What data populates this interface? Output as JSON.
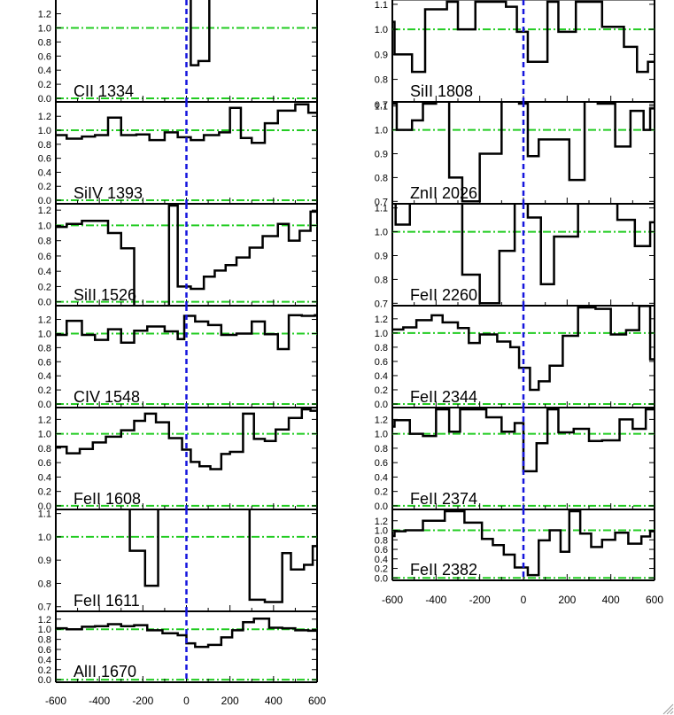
{
  "chart_data": {
    "type": "line",
    "xlabel": "",
    "ylabel": "",
    "xlim": [
      -600,
      600
    ],
    "x_ticks": [
      -600,
      -400,
      -200,
      0,
      200,
      400,
      600
    ],
    "x_tick_labels": [
      "-600",
      "-400",
      "-200",
      "0",
      "200",
      "400",
      "600"
    ],
    "marker_x": 0,
    "continuum_level": 1.0,
    "zero_level": 0.0,
    "colors": {
      "spectrum": "#000000",
      "continuum": "#22cc22",
      "velocity_zero": "#1515dd",
      "axes": "#000000"
    },
    "panels": [
      {
        "label": "CII 1334",
        "column": "left",
        "row": 0,
        "ylim": [
          -0.05,
          1.37
        ],
        "yticks": [
          0.0,
          0.2,
          0.4,
          0.6,
          0.8,
          1.0,
          1.2
        ],
        "ytick_labels": [
          "0.0",
          "0.2",
          "0.4",
          "0.6",
          "0.8",
          "1.0",
          "1.2"
        ],
        "x": [
          -20,
          20,
          55,
          105
        ],
        "y": [
          1.6,
          0.47,
          0.53,
          1.6
        ]
      },
      {
        "label": "SiIV 1393",
        "column": "left",
        "row": 1,
        "ylim": [
          -0.05,
          1.38
        ],
        "yticks": [
          0.0,
          0.2,
          0.4,
          0.6,
          0.8,
          1.0,
          1.2
        ],
        "ytick_labels": [
          "0.0",
          "0.2",
          "0.4",
          "0.6",
          "0.8",
          "1.0",
          "1.2"
        ],
        "x": [
          -600,
          -550,
          -480,
          -420,
          -360,
          -300,
          -230,
          -170,
          -100,
          -40,
          20,
          80,
          150,
          200,
          250,
          300,
          360,
          420,
          500,
          560
        ],
        "y": [
          0.93,
          0.88,
          0.91,
          0.93,
          1.18,
          0.93,
          0.94,
          0.86,
          0.97,
          0.9,
          0.86,
          0.93,
          0.97,
          1.32,
          0.89,
          0.82,
          1.1,
          1.28,
          1.37,
          1.25
        ]
      },
      {
        "label": "SiII 1526",
        "column": "left",
        "row": 2,
        "ylim": [
          -0.05,
          1.26
        ],
        "yticks": [
          0.0,
          0.2,
          0.4,
          0.6,
          0.8,
          1.0,
          1.2
        ],
        "ytick_labels": [
          "0.0",
          "0.2",
          "0.4",
          "0.6",
          "0.8",
          "1.0",
          "1.2"
        ],
        "x": [
          -600,
          -550,
          -480,
          -420,
          -360,
          -300,
          -240,
          -180,
          -130,
          -80,
          -40,
          20,
          80,
          130,
          180,
          230,
          290,
          350,
          420,
          470,
          520,
          570
        ],
        "y": [
          0.98,
          1.02,
          1.06,
          1.06,
          0.9,
          0.7,
          -0.1,
          -0.1,
          -0.1,
          1.26,
          0.2,
          0.17,
          0.33,
          0.41,
          0.48,
          0.58,
          0.71,
          0.86,
          1.02,
          0.8,
          0.93,
          1.18
        ]
      },
      {
        "label": "CIV 1548",
        "column": "left",
        "row": 3,
        "ylim": [
          -0.05,
          1.37
        ],
        "yticks": [
          0.0,
          0.2,
          0.4,
          0.6,
          0.8,
          1.0,
          1.2
        ],
        "ytick_labels": [
          "0.0",
          "0.2",
          "0.4",
          "0.6",
          "0.8",
          "1.0",
          "1.2"
        ],
        "x": [
          -600,
          -550,
          -480,
          -420,
          -360,
          -300,
          -240,
          -180,
          -100,
          -40,
          -10,
          40,
          100,
          160,
          230,
          300,
          360,
          420,
          470,
          530,
          590
        ],
        "y": [
          0.98,
          1.18,
          0.98,
          0.91,
          1.06,
          0.87,
          1.04,
          1.1,
          1.03,
          0.92,
          1.25,
          1.17,
          1.12,
          0.98,
          1.0,
          1.17,
          0.99,
          0.78,
          1.26,
          1.25,
          1.26
        ]
      },
      {
        "label": "FeII 1608",
        "column": "left",
        "row": 4,
        "ylim": [
          -0.05,
          1.34
        ],
        "yticks": [
          0.0,
          0.2,
          0.4,
          0.6,
          0.8,
          1.0,
          1.2
        ],
        "ytick_labels": [
          "0.0",
          "0.2",
          "0.4",
          "0.6",
          "0.8",
          "1.0",
          "1.2"
        ],
        "x": [
          -600,
          -550,
          -490,
          -430,
          -370,
          -300,
          -240,
          -190,
          -140,
          -80,
          -20,
          20,
          60,
          110,
          160,
          200,
          260,
          310,
          360,
          410,
          470,
          530,
          570
        ],
        "y": [
          0.82,
          0.73,
          0.79,
          0.88,
          0.96,
          1.05,
          1.18,
          1.28,
          1.16,
          0.94,
          0.78,
          0.61,
          0.55,
          0.51,
          0.72,
          0.75,
          1.28,
          0.93,
          0.9,
          1.06,
          1.22,
          1.34,
          1.32
        ]
      },
      {
        "label": "FeII 1611",
        "column": "left",
        "row": 5,
        "ylim": [
          0.68,
          1.11
        ],
        "yticks": [
          0.7,
          0.8,
          0.9,
          1.0,
          1.1
        ],
        "ytick_labels": [
          "0.7",
          "0.8",
          "0.9",
          "1.0",
          "1.1"
        ],
        "x": [
          -600,
          -330,
          -260,
          -190,
          -130,
          290,
          360,
          440,
          480,
          540,
          580
        ],
        "y": [
          1.15,
          1.15,
          0.94,
          0.79,
          1.15,
          0.73,
          0.72,
          0.93,
          0.86,
          0.88,
          0.96
        ]
      },
      {
        "label": "AlII 1670",
        "column": "left",
        "row": 6,
        "ylim": [
          -0.05,
          1.32
        ],
        "yticks": [
          0.0,
          0.2,
          0.4,
          0.6,
          0.8,
          1.0,
          1.2
        ],
        "ytick_labels": [
          "0.0",
          "0.2",
          "0.4",
          "0.6",
          "0.8",
          "1.0",
          "1.2"
        ],
        "x": [
          -600,
          -550,
          -480,
          -420,
          -360,
          -300,
          -240,
          -180,
          -110,
          -40,
          0,
          40,
          100,
          160,
          210,
          260,
          310,
          380,
          440,
          500,
          560
        ],
        "y": [
          1.02,
          1.0,
          1.05,
          1.06,
          1.1,
          1.06,
          1.08,
          0.98,
          0.92,
          0.88,
          0.72,
          0.65,
          0.69,
          0.84,
          0.98,
          1.14,
          1.21,
          1.03,
          1.02,
          0.98,
          0.97
        ]
      },
      {
        "label": "SiII 1808",
        "column": "right",
        "row": 0,
        "ylim": [
          0.71,
          1.11
        ],
        "yticks": [
          0.7,
          0.8,
          0.9,
          1.0,
          1.1
        ],
        "ytick_labels": [
          "0.7",
          "0.8",
          "0.9",
          "1.0",
          "1.1"
        ],
        "x": [
          -600,
          -590,
          -510,
          -450,
          -350,
          -300,
          -220,
          -130,
          -80,
          -30,
          20,
          110,
          160,
          240,
          360,
          460,
          520,
          570
        ],
        "y": [
          1.03,
          0.9,
          0.83,
          1.08,
          1.11,
          1.0,
          1.11,
          1.11,
          1.09,
          0.99,
          0.87,
          1.11,
          0.99,
          1.11,
          1.01,
          0.93,
          0.83,
          0.87
        ]
      },
      {
        "label": "ZnII 2026",
        "column": "right",
        "row": 1,
        "ylim": [
          0.69,
          1.11
        ],
        "yticks": [
          0.7,
          0.8,
          0.9,
          1.0,
          1.1
        ],
        "ytick_labels": [
          "0.7",
          "0.8",
          "0.9",
          "1.0",
          "1.1"
        ],
        "x": [
          -600,
          -580,
          -510,
          -460,
          -400,
          -340,
          -280,
          -200,
          -100,
          -20,
          20,
          70,
          160,
          210,
          280,
          340,
          420,
          490,
          550,
          580
        ],
        "y": [
          1.11,
          1.0,
          1.04,
          1.11,
          1.12,
          0.8,
          0.7,
          0.9,
          1.12,
          1.11,
          0.89,
          0.96,
          0.96,
          0.79,
          1.12,
          1.11,
          0.93,
          1.08,
          1.0,
          1.09
        ]
      },
      {
        "label": "FeII 2260",
        "column": "right",
        "row": 2,
        "ylim": [
          0.69,
          1.11
        ],
        "yticks": [
          0.7,
          0.8,
          0.9,
          1.0,
          1.1
        ],
        "ytick_labels": [
          "0.7",
          "0.8",
          "0.9",
          "1.0",
          "1.1"
        ],
        "x": [
          -600,
          -585,
          -520,
          -410,
          -350,
          -280,
          -200,
          -110,
          -40,
          0,
          20,
          80,
          140,
          250,
          350,
          430,
          510,
          580
        ],
        "y": [
          1.12,
          1.03,
          1.12,
          1.12,
          1.12,
          0.82,
          0.7,
          0.92,
          1.12,
          1.12,
          1.06,
          0.78,
          0.98,
          1.12,
          1.12,
          1.05,
          0.94,
          1.04
        ]
      },
      {
        "label": "FeII 2344",
        "column": "right",
        "row": 3,
        "ylim": [
          -0.05,
          1.36
        ],
        "yticks": [
          0.0,
          0.2,
          0.4,
          0.6,
          0.8,
          1.0,
          1.2
        ],
        "ytick_labels": [
          "0.0",
          "0.2",
          "0.4",
          "0.6",
          "0.8",
          "1.0",
          "1.2"
        ],
        "x": [
          -600,
          -550,
          -490,
          -420,
          -370,
          -300,
          -250,
          -200,
          -120,
          -60,
          -20,
          30,
          70,
          120,
          180,
          250,
          330,
          400,
          470,
          530,
          580
        ],
        "y": [
          1.05,
          1.08,
          1.18,
          1.25,
          1.15,
          1.07,
          0.86,
          0.98,
          0.88,
          0.8,
          0.51,
          0.2,
          0.32,
          0.54,
          0.96,
          1.36,
          1.34,
          0.98,
          1.04,
          1.38,
          0.63
        ]
      },
      {
        "label": "FeII 2374",
        "column": "right",
        "row": 4,
        "ylim": [
          -0.05,
          1.34
        ],
        "yticks": [
          0.0,
          0.2,
          0.4,
          0.6,
          0.8,
          1.0,
          1.2
        ],
        "ytick_labels": [
          "0.0",
          "0.2",
          "0.4",
          "0.6",
          "0.8",
          "1.0",
          "1.2"
        ],
        "x": [
          -600,
          -590,
          -520,
          -460,
          -400,
          -340,
          -290,
          -230,
          -170,
          -100,
          -40,
          0,
          60,
          110,
          160,
          230,
          300,
          360,
          440,
          500,
          560
        ],
        "y": [
          1.1,
          1.19,
          1.0,
          0.97,
          1.34,
          1.03,
          1.34,
          1.34,
          1.23,
          1.03,
          1.15,
          0.48,
          0.87,
          1.34,
          1.02,
          1.07,
          0.9,
          0.91,
          1.2,
          1.07,
          1.34
        ]
      },
      {
        "label": "FeII 2382",
        "column": "right",
        "row": 5,
        "ylim": [
          -0.05,
          1.4
        ],
        "yticks": [
          0.0,
          0.2,
          0.4,
          0.6,
          0.8,
          1.0,
          1.2
        ],
        "ytick_labels": [
          "0.0",
          "0.2",
          "0.4",
          "0.6",
          "0.8",
          "1.0",
          "1.2"
        ],
        "x": [
          -600,
          -590,
          -540,
          -460,
          -360,
          -270,
          -190,
          -140,
          -90,
          -40,
          20,
          70,
          120,
          170,
          210,
          260,
          310,
          360,
          420,
          480,
          540,
          580
        ],
        "y": [
          0.88,
          0.98,
          1.0,
          1.2,
          1.4,
          1.16,
          0.82,
          0.69,
          0.49,
          0.22,
          0.06,
          0.79,
          1.0,
          0.55,
          1.4,
          0.93,
          0.65,
          0.8,
          0.95,
          0.72,
          0.87,
          0.98
        ]
      }
    ]
  }
}
